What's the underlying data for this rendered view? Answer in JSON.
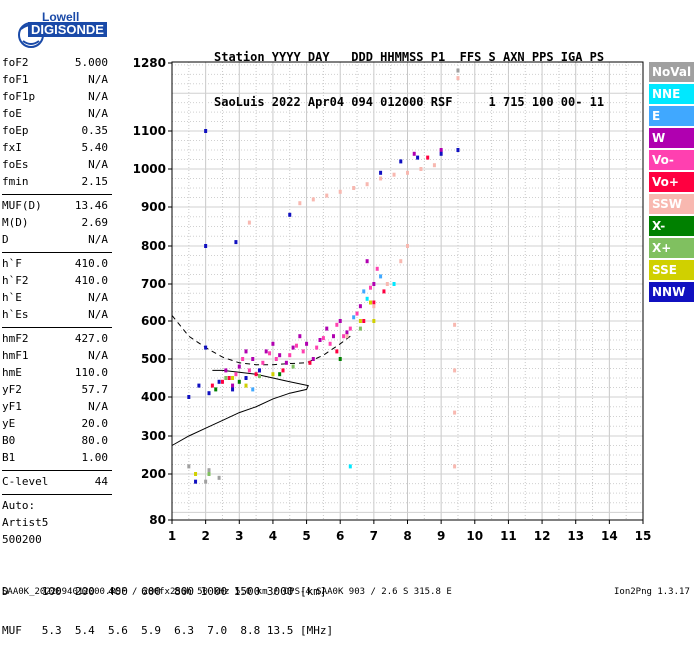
{
  "logo": {
    "line1": "Lowell",
    "line2": "DIGISONDE"
  },
  "header": {
    "line1": "Station YYYY DAY   DDD HHMMSS P1  FFS S AXN PPS IGA PS",
    "line2": "SaoLuis 2022 Apr04 094 012000 RSF     1 715 100 00- 11"
  },
  "params": {
    "group1": [
      {
        "label": "foF2",
        "value": "5.000"
      },
      {
        "label": "foF1",
        "value": "N/A"
      },
      {
        "label": "foF1p",
        "value": "N/A"
      },
      {
        "label": "foE",
        "value": "N/A"
      },
      {
        "label": "foEp",
        "value": "0.35"
      },
      {
        "label": "fxI",
        "value": "5.40"
      },
      {
        "label": "foEs",
        "value": "N/A"
      },
      {
        "label": "fmin",
        "value": "2.15"
      }
    ],
    "group2": [
      {
        "label": "MUF(D)",
        "value": "13.46"
      },
      {
        "label": "M(D)",
        "value": "2.69"
      },
      {
        "label": "D",
        "value": "N/A"
      }
    ],
    "group3": [
      {
        "label": "h`F",
        "value": "410.0"
      },
      {
        "label": "h`F2",
        "value": "410.0"
      },
      {
        "label": "h`E",
        "value": "N/A"
      },
      {
        "label": "h`Es",
        "value": "N/A"
      }
    ],
    "group4": [
      {
        "label": "hmF2",
        "value": "427.0"
      },
      {
        "label": "hmF1",
        "value": "N/A"
      },
      {
        "label": "hmE",
        "value": "110.0"
      },
      {
        "label": "yF2",
        "value": "57.7"
      },
      {
        "label": "yF1",
        "value": "N/A"
      },
      {
        "label": "yE",
        "value": "20.0"
      },
      {
        "label": "B0",
        "value": "80.0"
      },
      {
        "label": "B1",
        "value": "1.00"
      }
    ],
    "clevel": {
      "label": "C-level",
      "value": "44"
    },
    "auto": [
      "Auto:",
      "Artist5",
      "500200"
    ]
  },
  "legend": [
    {
      "label": "NoVal",
      "color": "#a0a0a0"
    },
    {
      "label": "NNE",
      "color": "#00e8ff"
    },
    {
      "label": "E",
      "color": "#40a8ff"
    },
    {
      "label": "W",
      "color": "#b000b0"
    },
    {
      "label": "Vo-",
      "color": "#ff40b0"
    },
    {
      "label": "Vo+",
      "color": "#ff0040"
    },
    {
      "label": "SSW",
      "color": "#f8b8b0"
    },
    {
      "label": "X-",
      "color": "#008000"
    },
    {
      "label": "X+",
      "color": "#80c060"
    },
    {
      "label": "SSE",
      "color": "#d0d000"
    },
    {
      "label": "NNW",
      "color": "#1010c0"
    }
  ],
  "muf_table": {
    "line1": "D     100  200  400  600  800 1000 1500 3000 [km]",
    "line2": "MUF   5.3  5.4  5.6  5.9  6.3  7.0  8.8 13.5 [MHz]"
  },
  "footer": "SAA0K_2022094012000.RSF / 280fx256h 50 kHz 5.0 km / DPS-4 SAA0K 903 / 2.6 S 315.8 E",
  "version": "Ion2Png 1.3.17",
  "chart_data": {
    "type": "scatter",
    "xlim": [
      1,
      15
    ],
    "ylim": [
      80,
      1300
    ],
    "xticks": [
      1,
      2,
      3,
      4,
      5,
      6,
      7,
      8,
      9,
      10,
      11,
      12,
      13,
      14,
      15
    ],
    "yticks": [
      80,
      200,
      300,
      400,
      500,
      600,
      700,
      800,
      900,
      1000,
      1100,
      1280
    ],
    "grid": true,
    "series": [
      {
        "name": "NoVal",
        "points": [
          [
            2.0,
            180
          ],
          [
            2.1,
            210
          ],
          [
            2.4,
            190
          ],
          [
            1.5,
            220
          ],
          [
            9.5,
            1260
          ]
        ]
      },
      {
        "name": "NNE",
        "points": [
          [
            6.3,
            220
          ],
          [
            7.6,
            700
          ],
          [
            6.8,
            660
          ]
        ]
      },
      {
        "name": "E",
        "points": [
          [
            6.7,
            680
          ],
          [
            7.2,
            720
          ],
          [
            3.4,
            420
          ],
          [
            6.4,
            610
          ]
        ]
      },
      {
        "name": "W",
        "points": [
          [
            2.6,
            470
          ],
          [
            3.0,
            480
          ],
          [
            3.4,
            500
          ],
          [
            3.8,
            520
          ],
          [
            4.2,
            510
          ],
          [
            4.6,
            530
          ],
          [
            5.0,
            540
          ],
          [
            5.4,
            550
          ],
          [
            5.8,
            560
          ],
          [
            6.2,
            570
          ],
          [
            6.6,
            640
          ],
          [
            7.0,
            700
          ],
          [
            3.2,
            520
          ],
          [
            4.0,
            540
          ],
          [
            4.8,
            560
          ],
          [
            5.6,
            580
          ],
          [
            6.0,
            600
          ],
          [
            6.8,
            760
          ],
          [
            3.6,
            470
          ],
          [
            4.4,
            490
          ],
          [
            5.2,
            500
          ],
          [
            2.8,
            430
          ],
          [
            8.2,
            1040
          ],
          [
            9.0,
            1050
          ]
        ]
      },
      {
        "name": "Vo-",
        "points": [
          [
            2.9,
            460
          ],
          [
            3.3,
            470
          ],
          [
            3.7,
            490
          ],
          [
            4.1,
            500
          ],
          [
            4.5,
            510
          ],
          [
            4.9,
            520
          ],
          [
            5.3,
            530
          ],
          [
            5.7,
            540
          ],
          [
            6.1,
            560
          ],
          [
            6.5,
            620
          ],
          [
            6.9,
            690
          ],
          [
            3.1,
            500
          ],
          [
            3.9,
            515
          ],
          [
            4.7,
            535
          ],
          [
            5.5,
            555
          ],
          [
            6.3,
            580
          ],
          [
            7.1,
            740
          ],
          [
            5.9,
            590
          ]
        ]
      },
      {
        "name": "Vo+",
        "points": [
          [
            2.2,
            430
          ],
          [
            2.7,
            450
          ],
          [
            3.5,
            460
          ],
          [
            4.3,
            470
          ],
          [
            5.1,
            490
          ],
          [
            5.9,
            520
          ],
          [
            6.7,
            600
          ],
          [
            7.3,
            680
          ],
          [
            7.0,
            650
          ],
          [
            8.6,
            1030
          ],
          [
            2.5,
            440
          ]
        ]
      },
      {
        "name": "SSW",
        "points": [
          [
            4.8,
            910
          ],
          [
            5.2,
            920
          ],
          [
            5.6,
            930
          ],
          [
            6.0,
            940
          ],
          [
            6.4,
            950
          ],
          [
            6.8,
            960
          ],
          [
            7.2,
            975
          ],
          [
            7.6,
            985
          ],
          [
            8.0,
            990
          ],
          [
            8.4,
            1000
          ],
          [
            8.8,
            1010
          ],
          [
            7.0,
            640
          ],
          [
            7.4,
            700
          ],
          [
            7.8,
            760
          ],
          [
            8.0,
            800
          ],
          [
            6.2,
            560
          ],
          [
            9.4,
            590
          ],
          [
            9.4,
            470
          ],
          [
            9.4,
            360
          ],
          [
            9.4,
            220
          ],
          [
            9.5,
            1240
          ],
          [
            3.3,
            860
          ]
        ]
      },
      {
        "name": "X-",
        "points": [
          [
            2.3,
            420
          ],
          [
            3.0,
            440
          ],
          [
            4.2,
            460
          ],
          [
            6.0,
            500
          ]
        ]
      },
      {
        "name": "X+",
        "points": [
          [
            2.6,
            450
          ],
          [
            3.6,
            455
          ],
          [
            4.6,
            480
          ],
          [
            6.6,
            580
          ],
          [
            2.1,
            200
          ]
        ]
      },
      {
        "name": "SSE",
        "points": [
          [
            2.8,
            450
          ],
          [
            3.2,
            430
          ],
          [
            4.0,
            460
          ],
          [
            6.6,
            600
          ],
          [
            6.9,
            650
          ],
          [
            7.0,
            600
          ],
          [
            1.7,
            200
          ]
        ]
      },
      {
        "name": "NNW",
        "points": [
          [
            2.0,
            1100
          ],
          [
            1.5,
            400
          ],
          [
            1.8,
            430
          ],
          [
            2.1,
            410
          ],
          [
            2.4,
            440
          ],
          [
            2.8,
            420
          ],
          [
            3.2,
            450
          ],
          [
            3.6,
            470
          ],
          [
            2.0,
            530
          ],
          [
            2.0,
            800
          ],
          [
            1.7,
            180
          ],
          [
            7.8,
            1020
          ],
          [
            8.3,
            1030
          ],
          [
            9.0,
            1040
          ],
          [
            9.5,
            1050
          ],
          [
            7.2,
            990
          ],
          [
            2.9,
            810
          ],
          [
            4.5,
            880
          ]
        ]
      }
    ],
    "profile_curve": [
      [
        1,
        275
      ],
      [
        1.5,
        300
      ],
      [
        2,
        320
      ],
      [
        2.5,
        340
      ],
      [
        3,
        360
      ],
      [
        3.5,
        375
      ],
      [
        4,
        395
      ],
      [
        4.5,
        410
      ],
      [
        5,
        420
      ],
      [
        5.05,
        430
      ],
      [
        4.5,
        440
      ],
      [
        4,
        450
      ],
      [
        3.5,
        460
      ],
      [
        3,
        465
      ],
      [
        2.5,
        470
      ],
      [
        2.2,
        470
      ]
    ],
    "trace_curve": [
      [
        1,
        615
      ],
      [
        1.5,
        560
      ],
      [
        2,
        530
      ],
      [
        2.5,
        505
      ],
      [
        3,
        490
      ],
      [
        3.5,
        485
      ],
      [
        4,
        485
      ],
      [
        4.5,
        488
      ],
      [
        5,
        490
      ],
      [
        5.5,
        510
      ],
      [
        6,
        540
      ],
      [
        6.3,
        560
      ]
    ]
  }
}
